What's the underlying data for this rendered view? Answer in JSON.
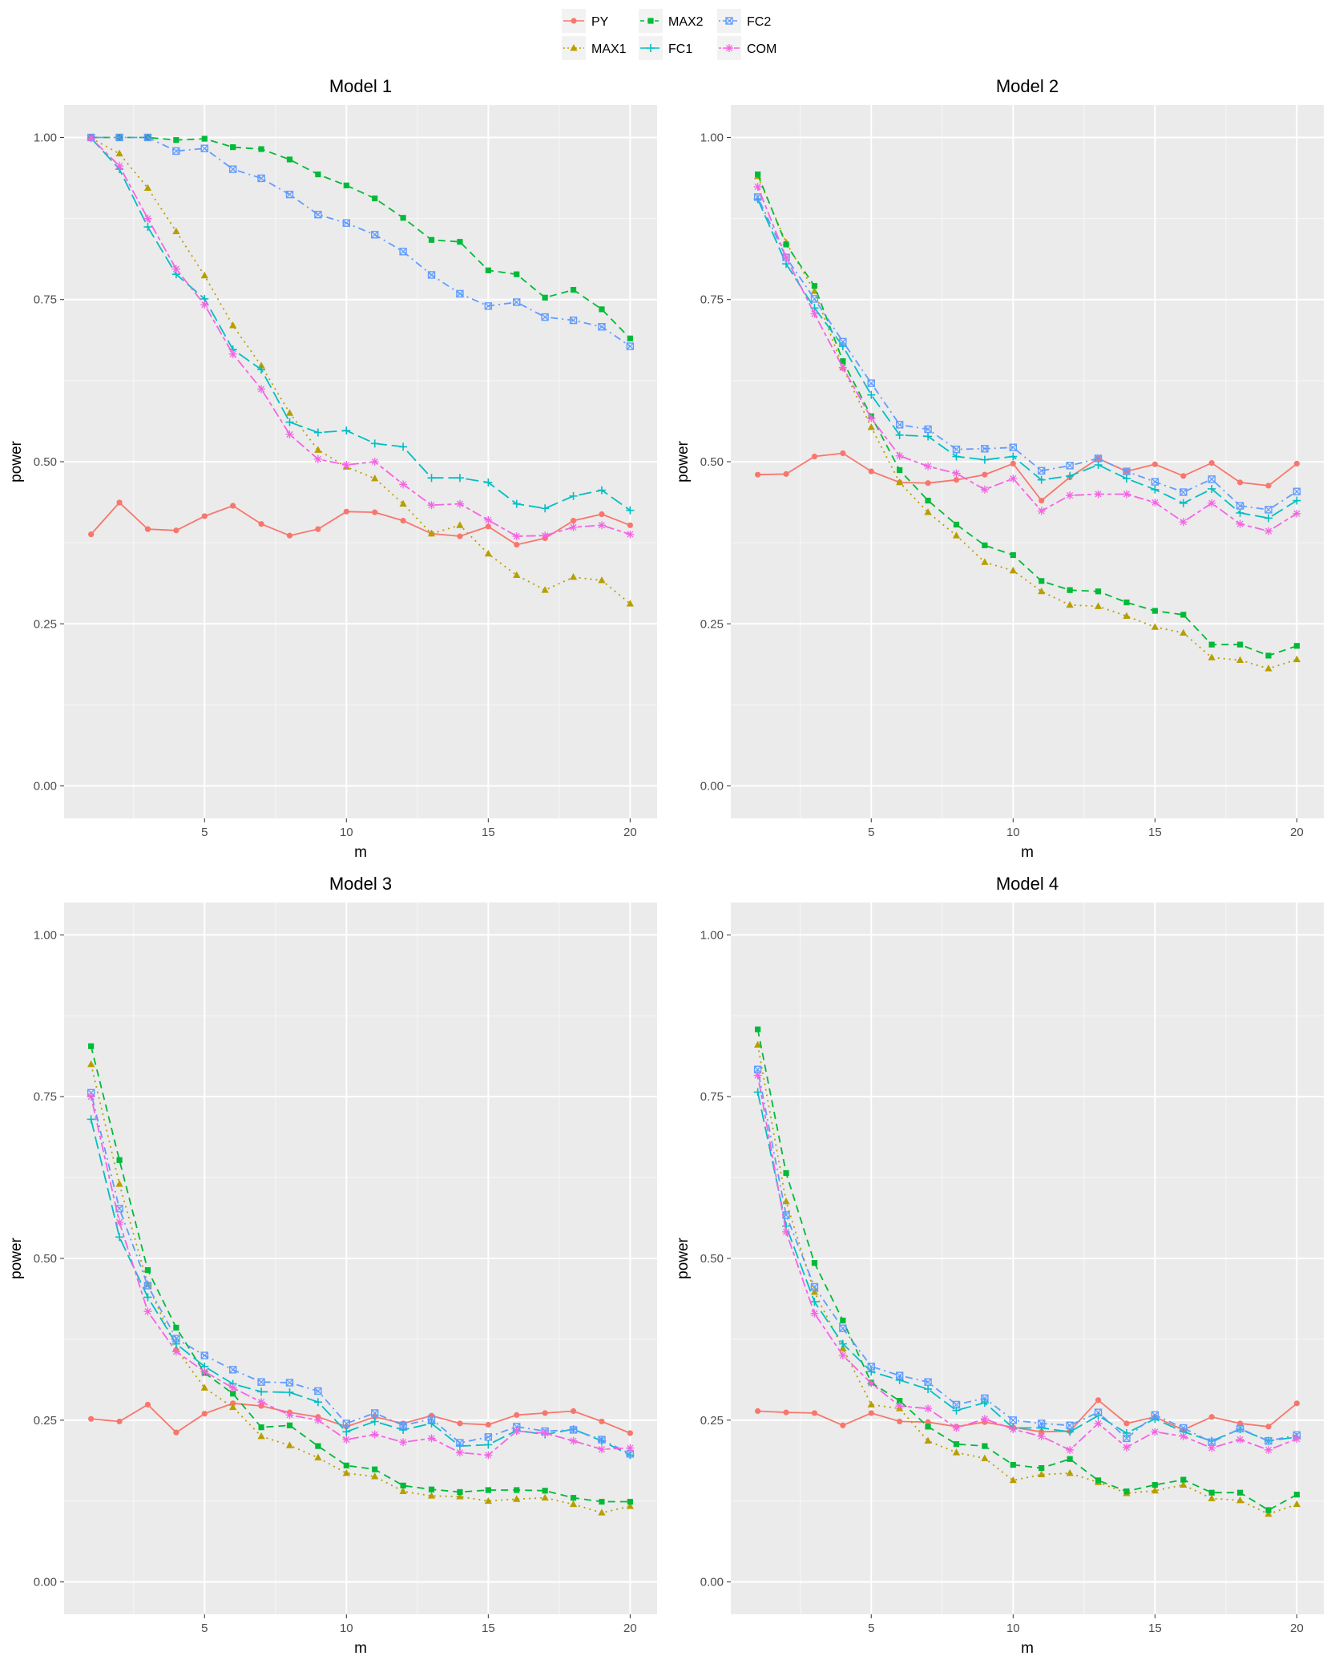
{
  "legend": {
    "items": [
      {
        "name": "PY",
        "color": "#F8766D",
        "shape": "circle",
        "dash": "solid"
      },
      {
        "name": "MAX1",
        "color": "#B79F00",
        "shape": "triangle",
        "dash": "dotted"
      },
      {
        "name": "MAX2",
        "color": "#00BA38",
        "shape": "square",
        "dash": "dashed"
      },
      {
        "name": "FC1",
        "color": "#00BFC4",
        "shape": "plus",
        "dash": "longdash"
      },
      {
        "name": "FC2",
        "color": "#619CFF",
        "shape": "squarecross",
        "dash": "dotdash"
      },
      {
        "name": "COM",
        "color": "#F564E3",
        "shape": "asterisk",
        "dash": "twodash"
      }
    ]
  },
  "chart_data": [
    {
      "type": "line",
      "title": "Model 1",
      "xlabel": "m",
      "ylabel": "power",
      "xlim": [
        0.05,
        20.95
      ],
      "ylim": [
        -0.05,
        1.05
      ],
      "xticks": [
        "5",
        "10",
        "15",
        "20"
      ],
      "yticks": [
        "0.00",
        "0.25",
        "0.50",
        "0.75",
        "1.00"
      ],
      "x": [
        1,
        2,
        3,
        4,
        5,
        6,
        7,
        8,
        9,
        10,
        11,
        12,
        13,
        14,
        15,
        16,
        17,
        18,
        19,
        20
      ],
      "series": [
        {
          "name": "PY",
          "values": [
            0.388,
            0.437,
            0.396,
            0.394,
            0.416,
            0.432,
            0.404,
            0.386,
            0.396,
            0.423,
            0.422,
            0.409,
            0.389,
            0.385,
            0.4,
            0.372,
            0.382,
            0.409,
            0.419,
            0.402
          ]
        },
        {
          "name": "MAX1",
          "values": [
            0.999,
            0.975,
            0.922,
            0.855,
            0.787,
            0.71,
            0.648,
            0.575,
            0.518,
            0.492,
            0.474,
            0.435,
            0.389,
            0.402,
            0.358,
            0.325,
            0.302,
            0.322,
            0.317,
            0.281
          ]
        },
        {
          "name": "MAX2",
          "values": [
            1.0,
            1.0,
            1.0,
            0.996,
            0.998,
            0.985,
            0.982,
            0.966,
            0.943,
            0.926,
            0.906,
            0.876,
            0.842,
            0.839,
            0.795,
            0.789,
            0.753,
            0.765,
            0.735,
            0.69
          ]
        },
        {
          "name": "FC1",
          "values": [
            0.999,
            0.951,
            0.862,
            0.789,
            0.751,
            0.673,
            0.642,
            0.561,
            0.545,
            0.548,
            0.528,
            0.523,
            0.475,
            0.475,
            0.468,
            0.435,
            0.428,
            0.447,
            0.456,
            0.425
          ]
        },
        {
          "name": "FC2",
          "values": [
            1.0,
            1.0,
            1.0,
            0.979,
            0.983,
            0.951,
            0.937,
            0.912,
            0.881,
            0.868,
            0.85,
            0.824,
            0.788,
            0.759,
            0.74,
            0.746,
            0.723,
            0.718,
            0.708,
            0.678
          ]
        },
        {
          "name": "COM",
          "values": [
            0.999,
            0.956,
            0.875,
            0.797,
            0.742,
            0.666,
            0.612,
            0.542,
            0.504,
            0.495,
            0.5,
            0.465,
            0.433,
            0.435,
            0.41,
            0.385,
            0.386,
            0.399,
            0.402,
            0.388
          ]
        }
      ]
    },
    {
      "type": "line",
      "title": "Model 2",
      "xlabel": "m",
      "ylabel": "power",
      "xlim": [
        0.05,
        20.95
      ],
      "ylim": [
        -0.05,
        1.05
      ],
      "xticks": [
        "5",
        "10",
        "15",
        "20"
      ],
      "yticks": [
        "0.00",
        "0.25",
        "0.50",
        "0.75",
        "1.00"
      ],
      "x": [
        1,
        2,
        3,
        4,
        5,
        6,
        7,
        8,
        9,
        10,
        11,
        12,
        13,
        14,
        15,
        16,
        17,
        18,
        19,
        20
      ],
      "series": [
        {
          "name": "PY",
          "values": [
            0.48,
            0.481,
            0.508,
            0.513,
            0.485,
            0.468,
            0.467,
            0.472,
            0.48,
            0.497,
            0.44,
            0.476,
            0.505,
            0.485,
            0.496,
            0.478,
            0.498,
            0.468,
            0.463,
            0.497
          ]
        },
        {
          "name": "MAX1",
          "values": [
            0.94,
            0.838,
            0.763,
            0.645,
            0.553,
            0.468,
            0.422,
            0.386,
            0.345,
            0.332,
            0.3,
            0.279,
            0.277,
            0.262,
            0.245,
            0.236,
            0.198,
            0.194,
            0.181,
            0.195
          ]
        },
        {
          "name": "MAX2",
          "values": [
            0.943,
            0.835,
            0.771,
            0.655,
            0.57,
            0.487,
            0.44,
            0.403,
            0.371,
            0.356,
            0.316,
            0.302,
            0.3,
            0.283,
            0.27,
            0.264,
            0.218,
            0.218,
            0.201,
            0.216
          ]
        },
        {
          "name": "FC1",
          "values": [
            0.905,
            0.805,
            0.737,
            0.678,
            0.603,
            0.541,
            0.539,
            0.508,
            0.503,
            0.508,
            0.472,
            0.478,
            0.495,
            0.474,
            0.457,
            0.436,
            0.458,
            0.421,
            0.413,
            0.44
          ]
        },
        {
          "name": "FC2",
          "values": [
            0.908,
            0.815,
            0.751,
            0.685,
            0.621,
            0.557,
            0.55,
            0.519,
            0.52,
            0.522,
            0.486,
            0.494,
            0.505,
            0.485,
            0.469,
            0.453,
            0.473,
            0.432,
            0.426,
            0.454
          ]
        },
        {
          "name": "COM",
          "values": [
            0.924,
            0.815,
            0.728,
            0.645,
            0.567,
            0.509,
            0.493,
            0.482,
            0.457,
            0.474,
            0.424,
            0.448,
            0.45,
            0.45,
            0.437,
            0.407,
            0.436,
            0.404,
            0.393,
            0.42
          ]
        }
      ]
    },
    {
      "type": "line",
      "title": "Model 3",
      "xlabel": "m",
      "ylabel": "power",
      "xlim": [
        0.05,
        20.95
      ],
      "ylim": [
        -0.05,
        1.05
      ],
      "xticks": [
        "5",
        "10",
        "15",
        "20"
      ],
      "yticks": [
        "0.00",
        "0.25",
        "0.50",
        "0.75",
        "1.00"
      ],
      "x": [
        1,
        2,
        3,
        4,
        5,
        6,
        7,
        8,
        9,
        10,
        11,
        12,
        13,
        14,
        15,
        16,
        17,
        18,
        19,
        20
      ],
      "series": [
        {
          "name": "PY",
          "values": [
            0.252,
            0.248,
            0.274,
            0.231,
            0.26,
            0.276,
            0.272,
            0.262,
            0.255,
            0.24,
            0.255,
            0.245,
            0.257,
            0.245,
            0.243,
            0.258,
            0.261,
            0.264,
            0.248,
            0.23
          ]
        },
        {
          "name": "MAX1",
          "values": [
            0.8,
            0.615,
            0.46,
            0.36,
            0.3,
            0.27,
            0.225,
            0.211,
            0.192,
            0.168,
            0.163,
            0.14,
            0.133,
            0.132,
            0.125,
            0.128,
            0.13,
            0.12,
            0.107,
            0.117
          ]
        },
        {
          "name": "MAX2",
          "values": [
            0.828,
            0.652,
            0.482,
            0.393,
            0.323,
            0.291,
            0.239,
            0.242,
            0.21,
            0.18,
            0.174,
            0.149,
            0.143,
            0.139,
            0.142,
            0.142,
            0.141,
            0.13,
            0.124,
            0.124
          ]
        },
        {
          "name": "FC1",
          "values": [
            0.715,
            0.533,
            0.44,
            0.368,
            0.333,
            0.306,
            0.294,
            0.293,
            0.278,
            0.232,
            0.248,
            0.235,
            0.245,
            0.21,
            0.212,
            0.234,
            0.228,
            0.236,
            0.218,
            0.196
          ]
        },
        {
          "name": "FC2",
          "values": [
            0.756,
            0.577,
            0.458,
            0.376,
            0.35,
            0.328,
            0.309,
            0.308,
            0.295,
            0.245,
            0.261,
            0.242,
            0.252,
            0.215,
            0.224,
            0.24,
            0.233,
            0.235,
            0.22,
            0.198
          ]
        },
        {
          "name": "COM",
          "values": [
            0.75,
            0.556,
            0.418,
            0.356,
            0.325,
            0.3,
            0.278,
            0.258,
            0.25,
            0.22,
            0.228,
            0.216,
            0.222,
            0.2,
            0.196,
            0.233,
            0.23,
            0.218,
            0.205,
            0.207
          ]
        }
      ]
    },
    {
      "type": "line",
      "title": "Model 4",
      "xlabel": "m",
      "ylabel": "power",
      "xlim": [
        0.05,
        20.95
      ],
      "ylim": [
        -0.05,
        1.05
      ],
      "xticks": [
        "5",
        "10",
        "15",
        "20"
      ],
      "yticks": [
        "0.00",
        "0.25",
        "0.50",
        "0.75",
        "1.00"
      ],
      "x": [
        1,
        2,
        3,
        4,
        5,
        6,
        7,
        8,
        9,
        10,
        11,
        12,
        13,
        14,
        15,
        16,
        17,
        18,
        19,
        20
      ],
      "series": [
        {
          "name": "PY",
          "values": [
            0.264,
            0.262,
            0.261,
            0.242,
            0.261,
            0.248,
            0.247,
            0.24,
            0.247,
            0.239,
            0.232,
            0.233,
            0.281,
            0.245,
            0.255,
            0.235,
            0.255,
            0.245,
            0.24,
            0.276
          ]
        },
        {
          "name": "MAX1",
          "values": [
            0.83,
            0.588,
            0.448,
            0.361,
            0.274,
            0.268,
            0.218,
            0.2,
            0.191,
            0.157,
            0.166,
            0.168,
            0.154,
            0.137,
            0.141,
            0.15,
            0.129,
            0.126,
            0.105,
            0.12
          ]
        },
        {
          "name": "MAX2",
          "values": [
            0.854,
            0.632,
            0.493,
            0.404,
            0.308,
            0.28,
            0.24,
            0.213,
            0.21,
            0.181,
            0.176,
            0.19,
            0.157,
            0.14,
            0.15,
            0.158,
            0.138,
            0.138,
            0.111,
            0.135
          ]
        },
        {
          "name": "FC1",
          "values": [
            0.757,
            0.55,
            0.433,
            0.368,
            0.325,
            0.312,
            0.298,
            0.265,
            0.277,
            0.238,
            0.238,
            0.232,
            0.257,
            0.23,
            0.252,
            0.232,
            0.218,
            0.236,
            0.218,
            0.224
          ]
        },
        {
          "name": "FC2",
          "values": [
            0.792,
            0.567,
            0.456,
            0.392,
            0.333,
            0.319,
            0.309,
            0.274,
            0.284,
            0.25,
            0.245,
            0.242,
            0.262,
            0.222,
            0.258,
            0.238,
            0.216,
            0.237,
            0.218,
            0.227
          ]
        },
        {
          "name": "COM",
          "values": [
            0.783,
            0.541,
            0.415,
            0.35,
            0.307,
            0.272,
            0.268,
            0.238,
            0.252,
            0.236,
            0.225,
            0.204,
            0.245,
            0.208,
            0.232,
            0.225,
            0.207,
            0.22,
            0.204,
            0.221
          ]
        }
      ]
    }
  ]
}
